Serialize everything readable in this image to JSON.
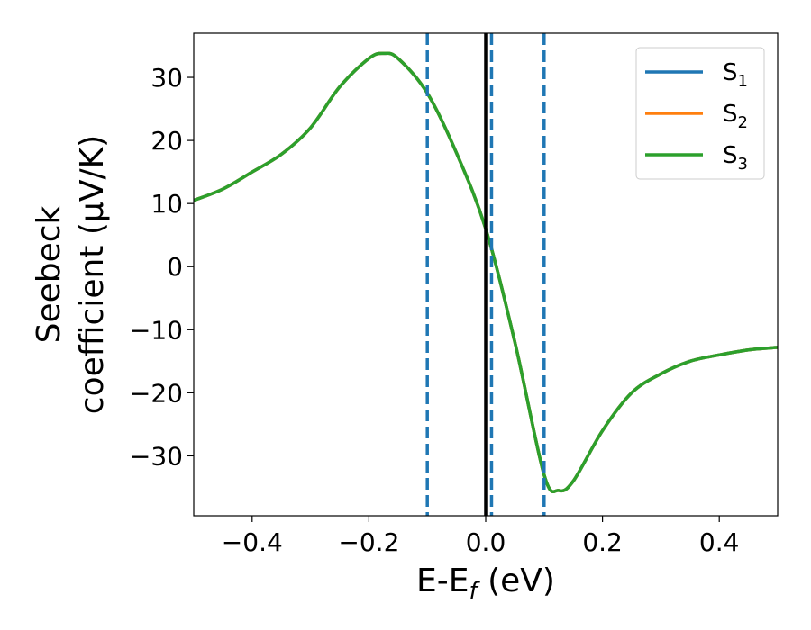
{
  "chart_data": {
    "type": "line",
    "xlabel": {
      "main": "E-E",
      "sub": "f",
      "tail": " (eV)"
    },
    "ylabel": {
      "line1": "Seebeck",
      "line2": "coefficient  (μV/K)"
    },
    "xlim": [
      -0.5,
      0.5
    ],
    "ylim": [
      -39.5,
      37.0
    ],
    "x_ticks": [
      -0.4,
      -0.2,
      0.0,
      0.2,
      0.4
    ],
    "x_tick_labels": [
      "−0.4",
      "−0.2",
      "0.0",
      "0.2",
      "0.4"
    ],
    "y_ticks": [
      30,
      20,
      10,
      0,
      -10,
      -20,
      -30
    ],
    "y_tick_labels": [
      "30",
      "20",
      "10",
      "0",
      "−10",
      "−20",
      "−30"
    ],
    "grid": false,
    "legend_position": "top-right",
    "series": [
      {
        "name": "S",
        "sub": "1",
        "color": "#1f77b4",
        "x": [
          -0.5,
          -0.45,
          -0.4,
          -0.35,
          -0.3,
          -0.25,
          -0.2,
          -0.175,
          -0.15,
          -0.1,
          -0.05,
          0.0,
          0.05,
          0.1,
          0.125,
          0.15,
          0.2,
          0.25,
          0.3,
          0.35,
          0.4,
          0.45,
          0.5
        ],
        "y": [
          10.5,
          12.3,
          15.0,
          17.8,
          22.0,
          28.5,
          33.0,
          33.8,
          33.0,
          27.5,
          18.0,
          6.0,
          -12.0,
          -33.0,
          -35.5,
          -34.0,
          -26.0,
          -20.0,
          -17.0,
          -15.0,
          -14.0,
          -13.2,
          -12.8
        ]
      },
      {
        "name": "S",
        "sub": "2",
        "color": "#ff7f0e",
        "x": [
          -0.5,
          -0.45,
          -0.4,
          -0.35,
          -0.3,
          -0.25,
          -0.2,
          -0.175,
          -0.15,
          -0.1,
          -0.05,
          0.0,
          0.05,
          0.1,
          0.125,
          0.15,
          0.2,
          0.25,
          0.3,
          0.35,
          0.4,
          0.45,
          0.5
        ],
        "y": [
          10.5,
          12.3,
          15.0,
          17.8,
          22.0,
          28.5,
          33.0,
          33.8,
          33.0,
          27.5,
          18.0,
          6.0,
          -12.0,
          -33.0,
          -35.5,
          -34.0,
          -26.0,
          -20.0,
          -17.0,
          -15.0,
          -14.0,
          -13.2,
          -12.8
        ]
      },
      {
        "name": "S",
        "sub": "3",
        "color": "#2ca02c",
        "x": [
          -0.5,
          -0.45,
          -0.4,
          -0.35,
          -0.3,
          -0.25,
          -0.2,
          -0.175,
          -0.15,
          -0.1,
          -0.05,
          0.0,
          0.05,
          0.1,
          0.125,
          0.15,
          0.2,
          0.25,
          0.3,
          0.35,
          0.4,
          0.45,
          0.5
        ],
        "y": [
          10.5,
          12.3,
          15.0,
          17.8,
          22.0,
          28.5,
          33.0,
          33.8,
          33.0,
          27.5,
          18.0,
          6.0,
          -12.0,
          -33.0,
          -35.5,
          -34.0,
          -26.0,
          -20.0,
          -17.0,
          -15.0,
          -14.0,
          -13.2,
          -12.8
        ]
      }
    ],
    "vertical_lines": [
      {
        "x": -0.1,
        "style": "dashed",
        "color": "#1f77b4"
      },
      {
        "x": 0.0,
        "style": "solid",
        "color": "#000000"
      },
      {
        "x": 0.01,
        "style": "dashed",
        "color": "#1f77b4"
      },
      {
        "x": 0.1,
        "style": "dashed",
        "color": "#1f77b4"
      }
    ]
  }
}
